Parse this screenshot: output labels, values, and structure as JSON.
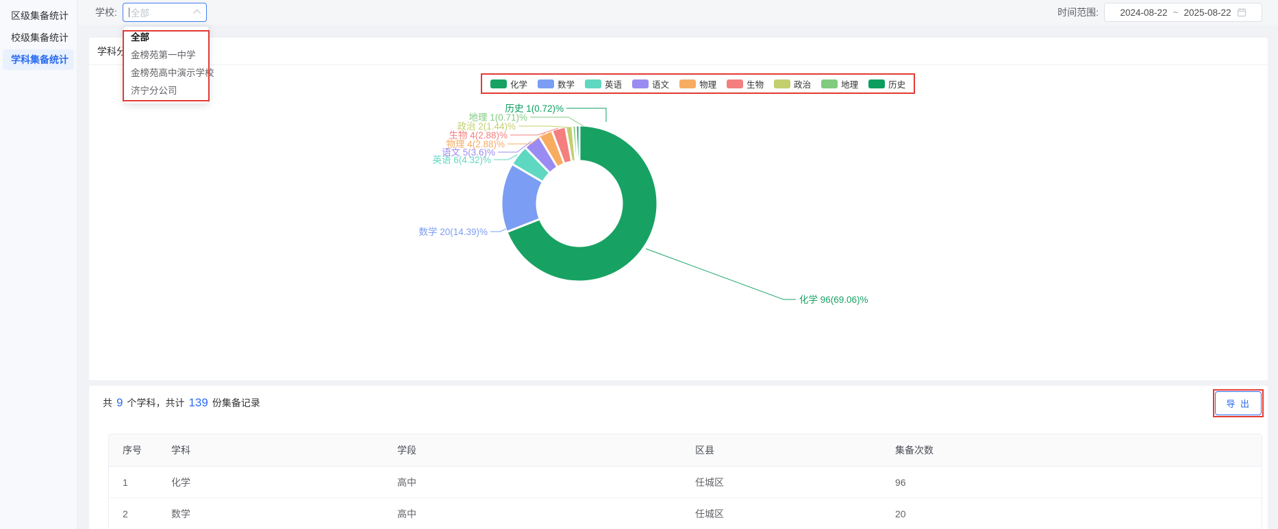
{
  "sidebar": {
    "items": [
      {
        "label": "区级集备统计",
        "active": false
      },
      {
        "label": "校级集备统计",
        "active": false
      },
      {
        "label": "学科集备统计",
        "active": true
      }
    ]
  },
  "filter": {
    "school_label": "学校:",
    "school_placeholder": "全部",
    "dropdown_options": [
      "全部",
      "金榜苑第一中学",
      "金榜苑高中演示学校",
      "济宁分公司"
    ],
    "date_label": "时间范围:",
    "date_start": "2024-08-22",
    "date_separator": "~",
    "date_end": "2025-08-22"
  },
  "panel": {
    "title": "学科分布"
  },
  "chart_data": {
    "type": "pie",
    "subtype": "donut",
    "legend_position": "top",
    "items": [
      {
        "name": "化学",
        "value": 96,
        "percent": 69.06,
        "label": "化学 96(69.06)%",
        "color": "#17a263"
      },
      {
        "name": "数学",
        "value": 20,
        "percent": 14.39,
        "label": "数学 20(14.39)%",
        "color": "#7b9df3"
      },
      {
        "name": "英语",
        "value": 6,
        "percent": 4.32,
        "label": "英语 6(4.32)%",
        "color": "#5fd8c1"
      },
      {
        "name": "语文",
        "value": 5,
        "percent": 3.6,
        "label": "语文 5(3.6)%",
        "color": "#9a8bf2"
      },
      {
        "name": "物理",
        "value": 4,
        "percent": 2.88,
        "label": "物理 4(2.88)%",
        "color": "#f7ac60"
      },
      {
        "name": "生物",
        "value": 4,
        "percent": 2.88,
        "label": "生物 4(2.88)%",
        "color": "#f47f7e"
      },
      {
        "name": "政治",
        "value": 2,
        "percent": 1.44,
        "label": "政治 2(1.44)%",
        "color": "#c3cf6f"
      },
      {
        "name": "地理",
        "value": 1,
        "percent": 0.71,
        "label": "地理 1(0.71)%",
        "color": "#81ca80"
      },
      {
        "name": "历史",
        "value": 1,
        "percent": 0.72,
        "label": "历史 1(0.72)%",
        "color": "#0b9e5f"
      }
    ]
  },
  "summary": {
    "prefix": "共",
    "subject_count": "9",
    "middle": "个学科，共计",
    "record_count": "139",
    "suffix": "份集备记录",
    "export_label": "导 出"
  },
  "table": {
    "headers": [
      "序号",
      "学科",
      "学段",
      "区县",
      "集备次数"
    ],
    "rows": [
      {
        "index": "1",
        "subject": "化学",
        "stage": "高中",
        "district": "任城区",
        "count": "96"
      },
      {
        "index": "2",
        "subject": "数学",
        "stage": "高中",
        "district": "任城区",
        "count": "20"
      }
    ]
  },
  "annotations": {
    "highlight_color": "#e23a33"
  }
}
